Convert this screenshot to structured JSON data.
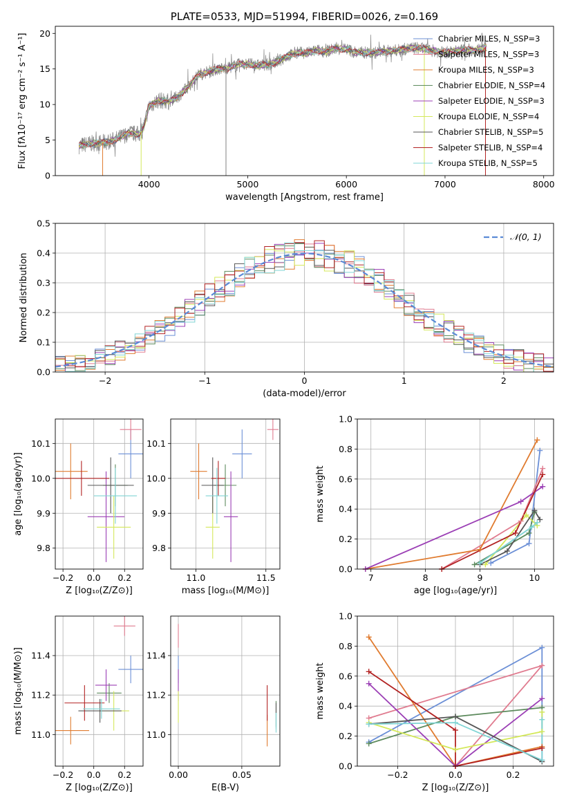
{
  "colors": [
    "#6b8fd6",
    "#e07b8f",
    "#e07b2f",
    "#5c8a5c",
    "#9b3fb5",
    "#d4e85a",
    "#555555",
    "#b22222",
    "#7fd4d4"
  ],
  "spectrum_color": "#808080",
  "gauss_color": "#5b8ad6",
  "chart_data": [
    {
      "id": "spectrum",
      "type": "line",
      "title": "PLATE=0533, MJD=51994, FIBERID=0026, z=0.169",
      "xlabel": "wavelength [Angstrom, rest frame]",
      "ylabel": "Flux [fλ10⁻¹⁷ erg cm⁻² s⁻¹ A⁻¹]",
      "xlim": [
        3050,
        8100
      ],
      "ylim": [
        0,
        21
      ],
      "xticks": [
        4000,
        5000,
        6000,
        7000,
        8000
      ],
      "yticks": [
        0,
        5,
        10,
        15,
        20
      ],
      "grid": false,
      "legend_position": "upper-right",
      "spectrum_points": [
        [
          3290,
          4.2
        ],
        [
          3400,
          4.5
        ],
        [
          3500,
          4.6
        ],
        [
          3600,
          4.8
        ],
        [
          3700,
          5.3
        ],
        [
          3800,
          6.0
        ],
        [
          3900,
          5.8
        ],
        [
          3950,
          7.0
        ],
        [
          4000,
          9.8
        ],
        [
          4100,
          10.6
        ],
        [
          4200,
          10.4
        ],
        [
          4300,
          11.2
        ],
        [
          4400,
          12.5
        ],
        [
          4500,
          14.2
        ],
        [
          4600,
          14.6
        ],
        [
          4700,
          15.0
        ],
        [
          4800,
          15.1
        ],
        [
          4900,
          15.6
        ],
        [
          5000,
          15.7
        ],
        [
          5100,
          15.5
        ],
        [
          5200,
          15.6
        ],
        [
          5300,
          16.0
        ],
        [
          5400,
          16.8
        ],
        [
          5500,
          17.3
        ],
        [
          5600,
          17.2
        ],
        [
          5700,
          17.6
        ],
        [
          5800,
          17.5
        ],
        [
          5900,
          17.9
        ],
        [
          6000,
          17.8
        ],
        [
          6100,
          17.3
        ],
        [
          6200,
          17.3
        ],
        [
          6300,
          17.3
        ],
        [
          6400,
          17.5
        ],
        [
          6500,
          17.6
        ],
        [
          6600,
          17.8
        ],
        [
          6700,
          18.0
        ],
        [
          6800,
          17.8
        ],
        [
          6900,
          17.5
        ],
        [
          7000,
          17.3
        ],
        [
          7100,
          17.5
        ],
        [
          7200,
          17.7
        ],
        [
          7300,
          17.6
        ],
        [
          7400,
          18.0
        ]
      ],
      "legend": [
        "Chabrier MILES, N_SSP=3",
        "Salpeter MILES, N_SSP=3",
        "Kroupa MILES, N_SSP=3",
        "Chabrier ELODIE, N_SSP=4",
        "Salpeter ELODIE, N_SSP=3",
        "Kroupa ELODIE, N_SSP=4",
        "Chabrier STELIB, N_SSP=5",
        "Salpeter STELIB, N_SSP=4",
        "Kroupa STELIB, N_SSP=5"
      ]
    },
    {
      "id": "residuals",
      "type": "line",
      "xlabel": "(data-model)/error",
      "ylabel": "Normed distribution",
      "xlim": [
        -2.5,
        2.5
      ],
      "ylim": [
        0,
        0.5
      ],
      "xticks": [
        -2,
        -1,
        0,
        1,
        2
      ],
      "xtick_labels": [
        "−2",
        "−1",
        "0",
        "1",
        "2"
      ],
      "yticks": [
        0.0,
        0.1,
        0.2,
        0.3,
        0.4,
        0.5
      ],
      "ytick_labels": [
        "0.0",
        "0.1",
        "0.2",
        "0.3",
        "0.4",
        "0.5"
      ],
      "grid": true,
      "legend_position": "upper-right",
      "legend": [
        "𝒩(0, 1)"
      ],
      "bin_width": 0.1,
      "bins_start": -2.5
    },
    {
      "id": "z_age",
      "type": "scatter",
      "xlabel": "Z [log₁₀(Z/Z⊙)]",
      "ylabel": "age  [log₁₀(age/yr)]",
      "xlim": [
        -0.25,
        0.32
      ],
      "ylim": [
        9.74,
        10.17
      ],
      "xticks": [
        -0.2,
        0.0,
        0.2
      ],
      "xtick_labels": [
        "−0.2",
        "0.0",
        "0.2"
      ],
      "yticks": [
        9.8,
        9.9,
        10.0,
        10.1
      ],
      "ytick_labels": [
        "9.8",
        "9.9",
        "10.0",
        "10.1"
      ],
      "grid": true,
      "points": [
        {
          "x": 0.24,
          "y": 10.07,
          "xerr": 0.08,
          "yerr": 0.07
        },
        {
          "x": 0.24,
          "y": 10.14,
          "xerr": 0.07,
          "yerr": 0.03
        },
        {
          "x": -0.15,
          "y": 10.02,
          "xerr": 0.11,
          "yerr": 0.08
        },
        {
          "x": 0.14,
          "y": 9.98,
          "xerr": 0.08,
          "yerr": 0.06
        },
        {
          "x": 0.08,
          "y": 9.89,
          "xerr": 0.12,
          "yerr": 0.13
        },
        {
          "x": 0.13,
          "y": 9.86,
          "xerr": 0.11,
          "yerr": 0.09
        },
        {
          "x": 0.11,
          "y": 9.98,
          "xerr": 0.15,
          "yerr": 0.08
        },
        {
          "x": -0.08,
          "y": 10.0,
          "xerr": 0.18,
          "yerr": 0.05
        },
        {
          "x": 0.14,
          "y": 9.95,
          "xerr": 0.14,
          "yerr": 0.08
        }
      ]
    },
    {
      "id": "mass_age",
      "type": "scatter",
      "xlabel": "mass [log₁₀(M/M⊙)]",
      "ylabel": "",
      "xlim": [
        10.82,
        11.6
      ],
      "ylim": [
        9.74,
        10.17
      ],
      "xticks": [
        11.0,
        11.5
      ],
      "xtick_labels": [
        "11.0",
        "11.5"
      ],
      "yticks": [
        9.8,
        9.9,
        10.0,
        10.1
      ],
      "ytick_labels": [
        "9.8",
        "9.9",
        "10.0",
        "10.1"
      ],
      "grid": true,
      "points": [
        {
          "x": 11.33,
          "y": 10.07,
          "xerr": 0.07,
          "yerr": 0.07
        },
        {
          "x": 11.55,
          "y": 10.14,
          "xerr": 0.04,
          "yerr": 0.03
        },
        {
          "x": 11.02,
          "y": 10.02,
          "xerr": 0.06,
          "yerr": 0.08
        },
        {
          "x": 11.21,
          "y": 9.98,
          "xerr": 0.08,
          "yerr": 0.06
        },
        {
          "x": 11.25,
          "y": 9.89,
          "xerr": 0.05,
          "yerr": 0.13
        },
        {
          "x": 11.12,
          "y": 9.86,
          "xerr": 0.05,
          "yerr": 0.09
        },
        {
          "x": 11.12,
          "y": 9.98,
          "xerr": 0.08,
          "yerr": 0.08
        },
        {
          "x": 11.16,
          "y": 10.0,
          "xerr": 0.05,
          "yerr": 0.05
        },
        {
          "x": 11.15,
          "y": 9.95,
          "xerr": 0.08,
          "yerr": 0.08
        }
      ]
    },
    {
      "id": "age_weight",
      "type": "line",
      "xlabel": "age  [log₁₀(age/yr)]",
      "ylabel": "mass weight",
      "xlim": [
        6.75,
        10.35
      ],
      "ylim": [
        0,
        1.0
      ],
      "xticks": [
        7,
        8,
        9,
        10
      ],
      "xtick_labels": [
        "7",
        "8",
        "9",
        "10"
      ],
      "yticks": [
        0.0,
        0.2,
        0.4,
        0.6,
        0.8,
        1.0
      ],
      "ytick_labels": [
        "0.0",
        "0.2",
        "0.4",
        "0.6",
        "0.8",
        "1.0"
      ],
      "grid": true,
      "series": [
        {
          "x": [
            9.2,
            9.9,
            10.1
          ],
          "y": [
            0.04,
            0.17,
            0.79
          ]
        },
        {
          "x": [
            8.3,
            9.75,
            10.15
          ],
          "y": [
            0.0,
            0.32,
            0.67
          ]
        },
        {
          "x": [
            6.9,
            9.0,
            10.05
          ],
          "y": [
            0.0,
            0.13,
            0.86
          ]
        },
        {
          "x": [
            8.9,
            9.9,
            10.0
          ],
          "y": [
            0.03,
            0.24,
            0.38
          ]
        },
        {
          "x": [
            6.9,
            9.75,
            10.15
          ],
          "y": [
            0.0,
            0.45,
            0.55
          ]
        },
        {
          "x": [
            9.1,
            9.85,
            10.05
          ],
          "y": [
            0.03,
            0.36,
            0.29
          ]
        },
        {
          "x": [
            9.0,
            9.5,
            10.0,
            10.1
          ],
          "y": [
            0.03,
            0.12,
            0.39,
            0.33
          ]
        },
        {
          "x": [
            8.3,
            9.65,
            10.15
          ],
          "y": [
            0.0,
            0.24,
            0.63
          ]
        },
        {
          "x": [
            9.0,
            9.95,
            10.05
          ],
          "y": [
            0.04,
            0.28,
            0.31
          ]
        }
      ]
    },
    {
      "id": "z_mass",
      "type": "scatter",
      "xlabel": "Z [log₁₀(Z/Z⊙)]",
      "ylabel": "mass [log₁₀(M/M⊙)]",
      "xlim": [
        -0.25,
        0.32
      ],
      "ylim": [
        10.84,
        11.6
      ],
      "xticks": [
        -0.2,
        0.0,
        0.2
      ],
      "xtick_labels": [
        "−0.2",
        "0.0",
        "0.2"
      ],
      "yticks": [
        11.0,
        11.2,
        11.4
      ],
      "ytick_labels": [
        "11.0",
        "11.2",
        "11.4"
      ],
      "grid": true,
      "points": [
        {
          "x": 0.24,
          "y": 11.33,
          "xerr": 0.08,
          "yerr": 0.07
        },
        {
          "x": 0.2,
          "y": 11.55,
          "xerr": 0.07,
          "yerr": 0.05
        },
        {
          "x": -0.15,
          "y": 11.02,
          "xerr": 0.12,
          "yerr": 0.07
        },
        {
          "x": 0.1,
          "y": 11.21,
          "xerr": 0.08,
          "yerr": 0.05
        },
        {
          "x": 0.08,
          "y": 11.25,
          "xerr": 0.07,
          "yerr": 0.08
        },
        {
          "x": 0.13,
          "y": 11.12,
          "xerr": 0.1,
          "yerr": 0.1
        },
        {
          "x": 0.04,
          "y": 11.12,
          "xerr": 0.14,
          "yerr": 0.06
        },
        {
          "x": -0.06,
          "y": 11.16,
          "xerr": 0.13,
          "yerr": 0.09
        },
        {
          "x": 0.05,
          "y": 11.13,
          "xerr": 0.12,
          "yerr": 0.05
        }
      ]
    },
    {
      "id": "ebv_mass",
      "type": "scatter",
      "xlabel": "E(B-V)",
      "ylabel": "",
      "xlim": [
        -0.006,
        0.08
      ],
      "ylim": [
        10.84,
        11.6
      ],
      "xticks": [
        0.0,
        0.05
      ],
      "xtick_labels": [
        "0.00",
        "0.05"
      ],
      "yticks": [
        11.0,
        11.2,
        11.4
      ],
      "ytick_labels": [
        "11.0",
        "11.2",
        "11.4"
      ],
      "grid": true,
      "points": [
        {
          "x": 0.0,
          "y": 11.33,
          "xerr": 0,
          "yerr": 0.07
        },
        {
          "x": 0.0,
          "y": 11.5,
          "xerr": 0,
          "yerr": 0.06
        },
        {
          "x": 0.07,
          "y": 11.02,
          "xerr": 0,
          "yerr": 0.08
        },
        {
          "x": 0.077,
          "y": 11.1,
          "xerr": 0,
          "yerr": 0.07
        },
        {
          "x": 0.0,
          "y": 11.25,
          "xerr": 0,
          "yerr": 0.08
        },
        {
          "x": 0.0,
          "y": 11.14,
          "xerr": 0,
          "yerr": 0.08
        },
        {
          "x": 0.077,
          "y": 11.1,
          "xerr": 0,
          "yerr": 0.06
        },
        {
          "x": 0.07,
          "y": 11.16,
          "xerr": 0,
          "yerr": 0.09
        },
        {
          "x": 0.077,
          "y": 11.06,
          "xerr": 0,
          "yerr": 0.05
        }
      ]
    },
    {
      "id": "z_weight",
      "type": "line",
      "xlabel": "Z [log₁₀(Z/Z⊙)]",
      "ylabel": "mass weight",
      "xlim": [
        -0.34,
        0.34
      ],
      "ylim": [
        0,
        1.0
      ],
      "xticks": [
        -0.2,
        0.0,
        0.2
      ],
      "xtick_labels": [
        "−0.2",
        "0.0",
        "0.2"
      ],
      "yticks": [
        0.0,
        0.2,
        0.4,
        0.6,
        0.8,
        1.0
      ],
      "ytick_labels": [
        "0.0",
        "0.2",
        "0.4",
        "0.6",
        "0.8",
        "1.0"
      ],
      "grid": true,
      "series": [
        {
          "x": [
            -0.3,
            0.3,
            0.3
          ],
          "y": [
            0.16,
            0.79,
            0.04
          ]
        },
        {
          "x": [
            -0.3,
            0.3,
            0.0
          ],
          "y": [
            0.32,
            0.67,
            0.0
          ]
        },
        {
          "x": [
            -0.3,
            0.0,
            0.3
          ],
          "y": [
            0.86,
            0.0,
            0.13
          ]
        },
        {
          "x": [
            -0.3,
            0.0,
            0.3
          ],
          "y": [
            0.15,
            0.33,
            0.39
          ]
        },
        {
          "x": [
            -0.3,
            0.0,
            0.3
          ],
          "y": [
            0.55,
            0.0,
            0.45
          ]
        },
        {
          "x": [
            -0.3,
            0.0,
            0.3,
            0.3
          ],
          "y": [
            0.29,
            0.11,
            0.23,
            0.36
          ]
        },
        {
          "x": [
            -0.3,
            0.0,
            0.3
          ],
          "y": [
            0.28,
            0.33,
            0.03
          ]
        },
        {
          "x": [
            -0.3,
            0.0,
            0.0,
            0.3
          ],
          "y": [
            0.63,
            0.24,
            0.0,
            0.12
          ]
        },
        {
          "x": [
            -0.3,
            0.0,
            0.3,
            0.3
          ],
          "y": [
            0.28,
            0.29,
            0.04,
            0.31
          ]
        }
      ]
    }
  ]
}
